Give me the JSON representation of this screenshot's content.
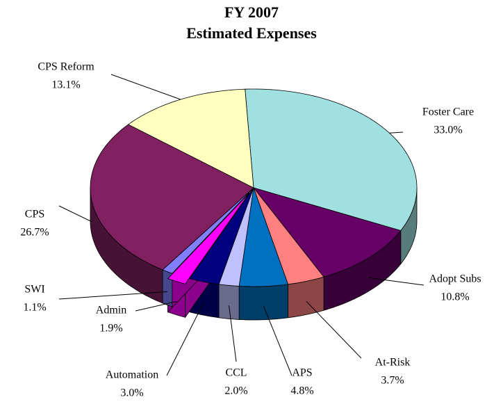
{
  "chart_data": {
    "type": "pie3d",
    "title": "FY 2007",
    "subtitle": "Estimated Expenses",
    "categories": [
      "Foster Care",
      "Adopt Subs",
      "At-Risk",
      "APS",
      "CCL",
      "Automation",
      "Admin",
      "SWI",
      "CPS",
      "CPS Reform"
    ],
    "values": [
      33.0,
      10.8,
      3.7,
      4.8,
      2.0,
      3.0,
      1.9,
      1.1,
      26.7,
      13.1
    ],
    "value_labels": [
      "33.0%",
      "10.8%",
      "3.7%",
      "4.8%",
      "2.0%",
      "3.0%",
      "1.9%",
      "1.1%",
      "26.7%",
      "13.1%"
    ],
    "colors": [
      "#a0e0e0",
      "#660066",
      "#ff8080",
      "#0070c0",
      "#c0c0ff",
      "#000080",
      "#ff00ff",
      "#8080ff",
      "#802060",
      "#ffffc0"
    ],
    "exploded": [
      "Admin"
    ]
  }
}
